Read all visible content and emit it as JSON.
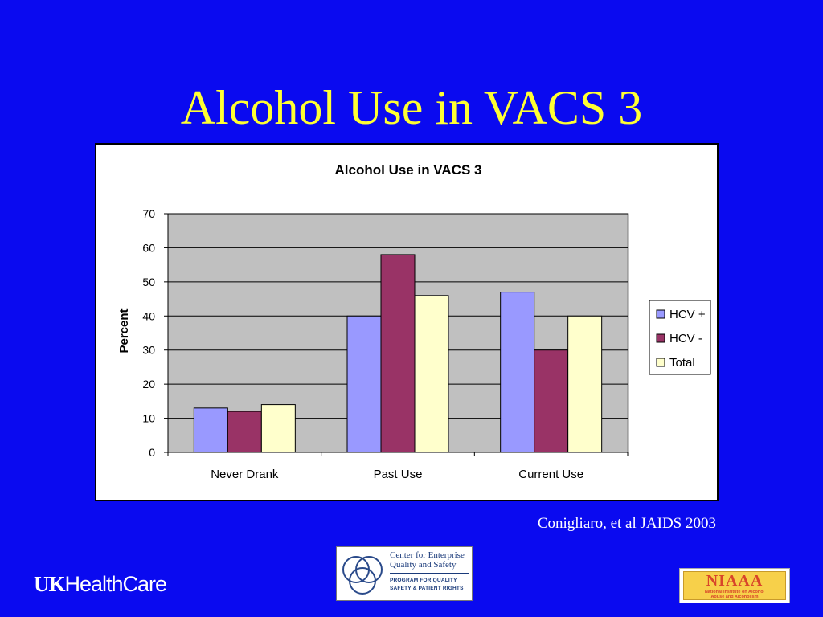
{
  "slide": {
    "title": "Alcohol Use in VACS 3",
    "citation": "Conigliaro, et al JAIDS 2003"
  },
  "logos": {
    "uk_prefix": "UK",
    "uk_suffix": "HealthCare",
    "center_name_line1": "Center for Enterprise",
    "center_name_line2": "Quality and Safety",
    "center_program_line1": "PROGRAM FOR QUALITY",
    "center_program_line2": "SAFETY & PATIENT RIGHTS",
    "niaaa_acronym": "NIAAA",
    "niaaa_full_line1": "National Institute on Alcohol",
    "niaaa_full_line2": "Abuse and Alcoholism"
  },
  "chart_data": {
    "type": "bar",
    "title": "Alcohol Use in VACS 3",
    "xlabel": "",
    "ylabel": "Percent",
    "categories": [
      "Never Drank",
      "Past Use",
      "Current Use"
    ],
    "series": [
      {
        "name": "HCV +",
        "values": [
          13,
          40,
          47
        ],
        "color": "#9999ff"
      },
      {
        "name": "HCV -",
        "values": [
          12,
          58,
          30
        ],
        "color": "#993366"
      },
      {
        "name": "Total",
        "values": [
          14,
          46,
          40
        ],
        "color": "#ffffcc"
      }
    ],
    "ylim": [
      0,
      70
    ],
    "yticks": [
      0,
      10,
      20,
      30,
      40,
      50,
      60,
      70
    ],
    "grid": true,
    "plot_background": "#c0c0c0",
    "legend": "right"
  }
}
